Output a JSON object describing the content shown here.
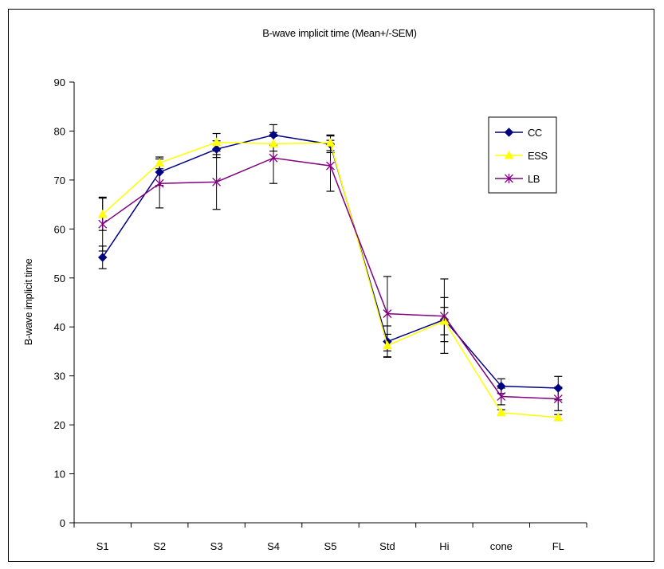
{
  "chart_data": {
    "type": "line",
    "title": "B-wave implicit time (Mean+/-SEM)",
    "xlabel": "",
    "ylabel": "B-wave implicit time",
    "ylim": [
      0,
      90
    ],
    "yticks": [
      0,
      10,
      20,
      30,
      40,
      50,
      60,
      70,
      80,
      90
    ],
    "categories": [
      "S1",
      "S2",
      "S3",
      "S4",
      "S5",
      "Std",
      "Hi",
      "cone",
      "FL"
    ],
    "grid": false,
    "legend_position": "right",
    "series": [
      {
        "name": "CC",
        "color": "#000080",
        "marker": "diamond",
        "values": [
          54.2,
          71.6,
          76.3,
          79.2,
          77.3,
          37.0,
          41.5,
          27.9,
          27.5
        ],
        "errors": [
          2.3,
          2.7,
          1.7,
          2.1,
          1.7,
          3.2,
          4.5,
          1.5,
          2.4
        ]
      },
      {
        "name": "ESS",
        "color": "#ffff00",
        "marker": "triangle",
        "values": [
          63.0,
          73.5,
          77.7,
          77.4,
          77.6,
          36.2,
          41.2,
          22.5,
          21.5
        ],
        "errors": [
          3.3,
          1.2,
          1.8,
          1.5,
          1.6,
          2.3,
          2.8,
          0.6,
          0.6
        ]
      },
      {
        "name": "LB",
        "color": "#800080",
        "marker": "star",
        "values": [
          61.0,
          69.3,
          69.6,
          74.5,
          72.9,
          42.7,
          42.2,
          25.8,
          25.3
        ],
        "errors": [
          5.5,
          5.0,
          5.6,
          5.2,
          5.2,
          7.6,
          7.6,
          1.7,
          2.4
        ]
      }
    ]
  }
}
